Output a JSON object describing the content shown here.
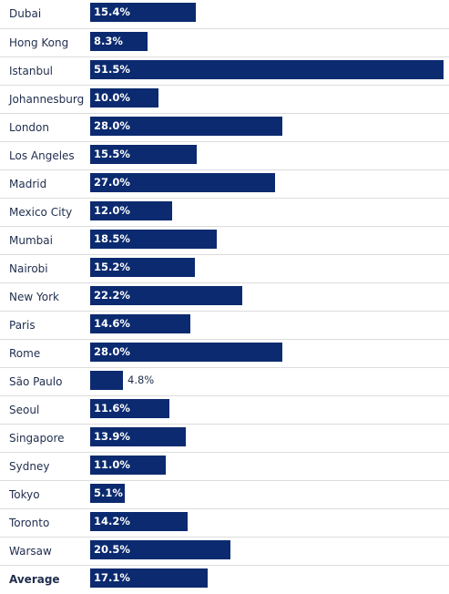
{
  "chart_data": {
    "type": "bar",
    "orientation": "horizontal",
    "categories": [
      "Dubai",
      "Hong Kong",
      "Istanbul",
      "Johannesburg",
      "London",
      "Los Angeles",
      "Madrid",
      "Mexico City",
      "Mumbai",
      "Nairobi",
      "New York",
      "Paris",
      "Rome",
      "São Paulo",
      "Seoul",
      "Singapore",
      "Sydney",
      "Tokyo",
      "Toronto",
      "Warsaw",
      "Average"
    ],
    "values": [
      15.4,
      8.3,
      51.5,
      10.0,
      28.0,
      15.5,
      27.0,
      12.0,
      18.5,
      15.2,
      22.2,
      14.6,
      28.0,
      4.8,
      11.6,
      13.9,
      11.0,
      5.1,
      14.2,
      20.5,
      17.1
    ],
    "value_labels": [
      "15.4%",
      "8.3%",
      "51.5%",
      "10.0%",
      "28.0%",
      "15.5%",
      "27.0%",
      "12.0%",
      "18.5%",
      "15.2%",
      "22.2%",
      "14.6%",
      "28.0%",
      "4.8%",
      "11.6%",
      "13.9%",
      "11.0%",
      "5.1%",
      "14.2%",
      "20.5%",
      "17.1%"
    ],
    "bold_categories": [
      "Average"
    ],
    "xlim": [
      0,
      51.5
    ],
    "bar_color": "#0b2a6f",
    "grid": false,
    "title": "",
    "xlabel": "",
    "ylabel": ""
  }
}
